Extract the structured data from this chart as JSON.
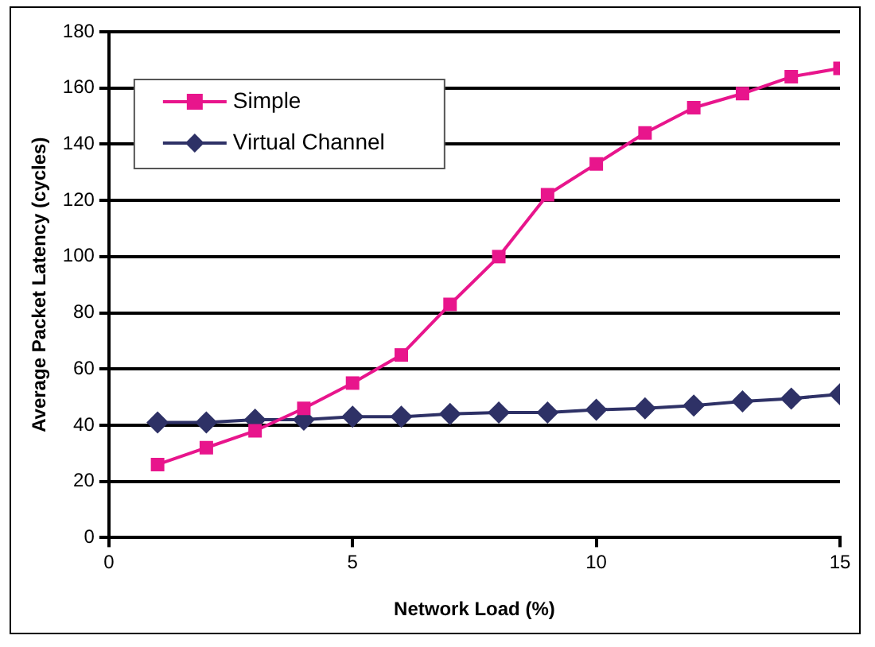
{
  "chart_data": {
    "type": "line",
    "xlabel": "Network Load (%)",
    "ylabel": "Average Packet Latency (cycles)",
    "x": [
      1,
      2,
      3,
      4,
      5,
      6,
      7,
      8,
      9,
      10,
      11,
      12,
      13,
      14,
      15
    ],
    "xlim": [
      0,
      15
    ],
    "xticks": [
      0,
      5,
      10,
      15
    ],
    "ylim": [
      0,
      180
    ],
    "yticks": [
      0,
      20,
      40,
      60,
      80,
      100,
      120,
      140,
      160,
      180
    ],
    "grid": "y",
    "legend": "top left",
    "series": [
      {
        "name": "Simple",
        "color": "#e8158c",
        "marker": "square",
        "values": [
          26,
          32,
          38,
          46,
          55,
          65,
          83,
          100,
          122,
          133,
          144,
          153,
          158,
          164,
          167
        ]
      },
      {
        "name": "Virtual Channel",
        "color": "#2e3166",
        "marker": "diamond",
        "values": [
          41,
          41,
          42,
          42,
          43,
          43,
          44,
          44.5,
          44.5,
          45.5,
          46,
          47,
          48.5,
          49.5,
          51
        ]
      }
    ]
  }
}
